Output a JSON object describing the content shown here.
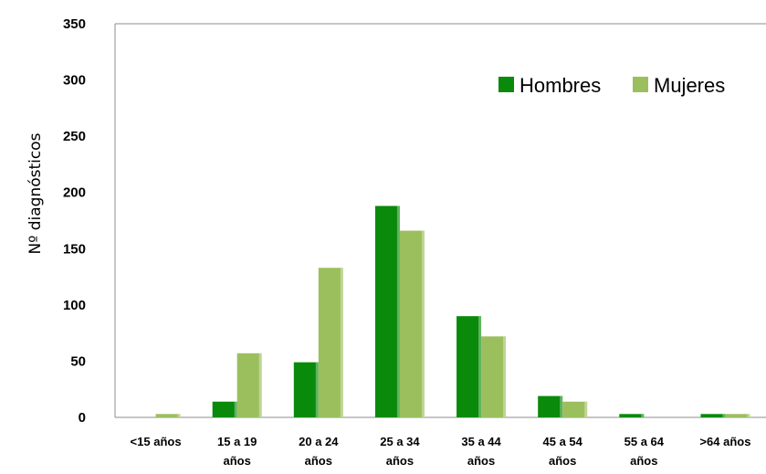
{
  "chart_data": {
    "type": "bar",
    "title": "",
    "xlabel": "",
    "ylabel": "Nº diagnósticos",
    "ylim": [
      0,
      350
    ],
    "yticks": [
      0,
      50,
      100,
      150,
      200,
      250,
      300,
      350
    ],
    "grid": false,
    "legend_position": "top-right",
    "categories": [
      [
        "<15 años"
      ],
      [
        "15 a 19",
        "años"
      ],
      [
        "20 a 24",
        "años"
      ],
      [
        "25 a 34",
        "años"
      ],
      [
        "35 a 44",
        "años"
      ],
      [
        "45 a 54",
        "años"
      ],
      [
        "55 a 64",
        "años"
      ],
      [
        ">64 años"
      ]
    ],
    "series": [
      {
        "name": "Hombres",
        "color": "#0a8a0a",
        "values": [
          0,
          14,
          49,
          188,
          90,
          19,
          3,
          3
        ]
      },
      {
        "name": "Mujeres",
        "color": "#9cbf5e",
        "values": [
          3,
          57,
          133,
          166,
          72,
          14,
          0,
          3
        ]
      }
    ]
  }
}
